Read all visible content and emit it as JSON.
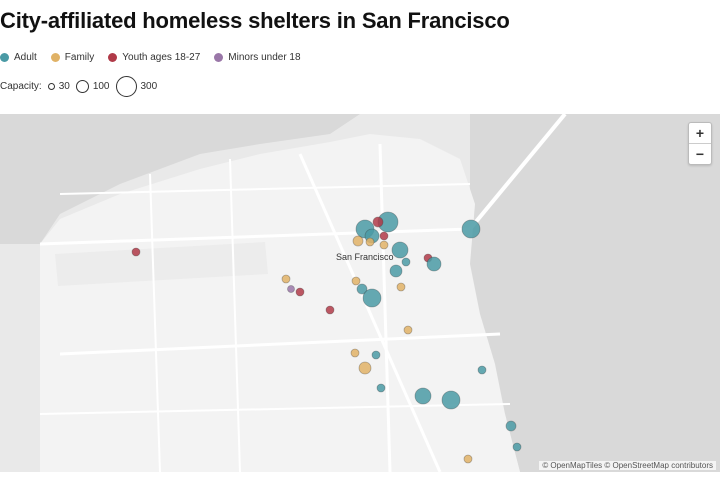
{
  "title": "City-affiliated homeless shelters in San Francisco",
  "legend": {
    "items": [
      {
        "label": "Adult",
        "color": "#4a9aa5"
      },
      {
        "label": "Family",
        "color": "#e0b266"
      },
      {
        "label": "Youth ages 18-27",
        "color": "#b03a48"
      },
      {
        "label": "Minors under 18",
        "color": "#9a77a8"
      }
    ]
  },
  "capacity": {
    "label": "Capacity:",
    "items": [
      "30",
      "100",
      "300"
    ]
  },
  "map": {
    "city_label": "San Francisco",
    "zoom_in": "+",
    "zoom_out": "−",
    "attribution": "© OpenMapTiles © OpenStreetMap contributors"
  }
}
